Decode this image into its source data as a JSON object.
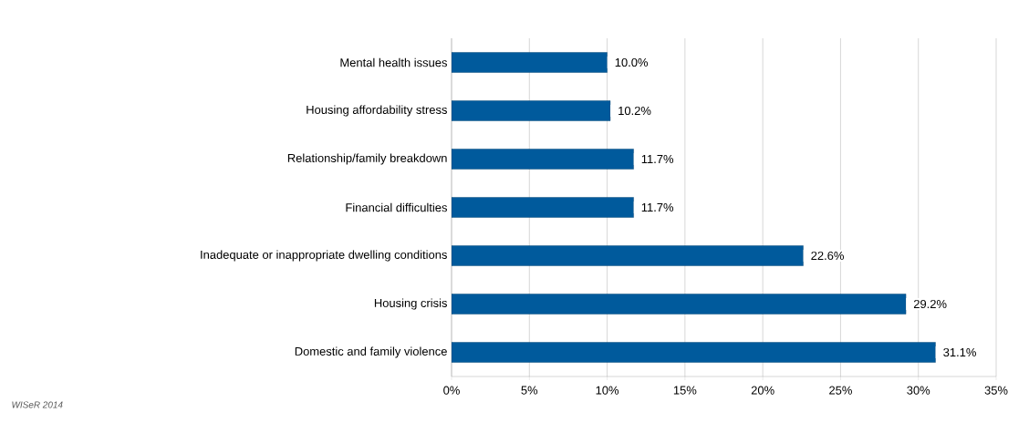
{
  "chart_data": {
    "type": "bar",
    "orientation": "horizontal",
    "categories": [
      "Mental health issues",
      "Housing affordability stress",
      "Relationship/family breakdown",
      "Financial difficulties",
      "Inadequate or inappropriate dwelling conditions",
      "Housing crisis",
      "Domestic and family violence"
    ],
    "values": [
      10.0,
      10.2,
      11.7,
      11.7,
      22.6,
      29.2,
      31.1
    ],
    "value_labels": [
      "10.0%",
      "10.2%",
      "11.7%",
      "11.7%",
      "22.6%",
      "29.2%",
      "31.1%"
    ],
    "color": "#005a9c",
    "xlim": [
      0,
      35
    ],
    "xticks": [
      {
        "value": 0,
        "label": "0%"
      },
      {
        "value": 5,
        "label": "5%"
      },
      {
        "value": 10,
        "label": "10%"
      },
      {
        "value": 15,
        "label": "15%"
      },
      {
        "value": 20,
        "label": "20%"
      },
      {
        "value": 25,
        "label": "25%"
      },
      {
        "value": 30,
        "label": "30%"
      },
      {
        "value": 35,
        "label": "35%"
      }
    ],
    "grid": "x",
    "annotations": [
      "WISeR 2014"
    ]
  }
}
